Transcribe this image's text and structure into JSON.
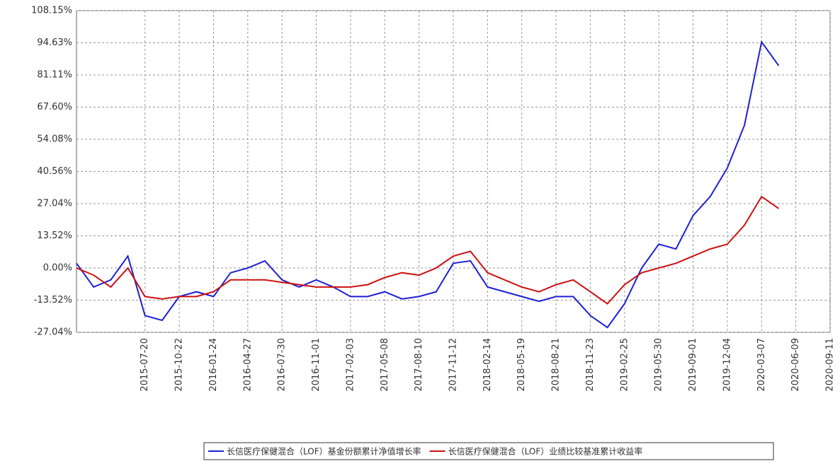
{
  "chart_data": {
    "type": "line",
    "categories": [
      null,
      null,
      null,
      null,
      "2015-07-20",
      null,
      "2015-10-22",
      null,
      "2016-01-24",
      null,
      "2016-04-27",
      null,
      "2016-07-30",
      null,
      "2016-11-01",
      null,
      "2017-02-03",
      null,
      "2017-05-08",
      null,
      "2017-08-10",
      null,
      "2017-11-12",
      null,
      "2018-02-14",
      null,
      "2018-05-19",
      null,
      "2018-08-21",
      null,
      "2018-11-23",
      null,
      "2019-02-25",
      null,
      "2019-05-30",
      null,
      "2019-09-01",
      null,
      "2019-12-04",
      null,
      "2020-03-07",
      null,
      "2020-06-09",
      null,
      "2020-09-11"
    ],
    "series": [
      {
        "name": "长信医疗保健混合（LOF）基金份额累计净值增长率",
        "color": "#1f1fd6",
        "values": [
          2,
          -8,
          -5,
          5,
          -20,
          -22,
          -12,
          -10,
          -12,
          -2,
          0,
          3,
          -5,
          -8,
          -5,
          -8,
          -12,
          -12,
          -10,
          -13,
          -12,
          -10,
          2,
          3,
          -8,
          -10,
          -12,
          -14,
          -12,
          -12,
          -20,
          -25,
          -15,
          0,
          10,
          8,
          22,
          30,
          42,
          60,
          95,
          85,
          null,
          null,
          null
        ]
      },
      {
        "name": "长信医疗保健混合（LOF）业绩比较基准累计收益率",
        "color": "#cc1111",
        "values": [
          0,
          -3,
          -8,
          0,
          -12,
          -13,
          -12,
          -12,
          -10,
          -5,
          -5,
          -5,
          -6,
          -7,
          -8,
          -8,
          -8,
          -7,
          -4,
          -2,
          -3,
          0,
          5,
          7,
          -2,
          -5,
          -8,
          -10,
          -7,
          -5,
          -10,
          -15,
          -7,
          -2,
          0,
          2,
          5,
          8,
          10,
          18,
          30,
          25,
          null,
          null,
          null
        ]
      }
    ],
    "ylim": [
      -27.04,
      108.15
    ],
    "yticks": [
      {
        "value": -27.04,
        "label": "-27.04%"
      },
      {
        "value": -13.52,
        "label": "-13.52%"
      },
      {
        "value": 0,
        "label": "0.00%"
      },
      {
        "value": 13.52,
        "label": "13.52%"
      },
      {
        "value": 27.04,
        "label": "27.04%"
      },
      {
        "value": 40.56,
        "label": "40.56%"
      },
      {
        "value": 54.08,
        "label": "54.08%"
      },
      {
        "value": 67.6,
        "label": "67.60%"
      },
      {
        "value": 81.11,
        "label": "81.11%"
      },
      {
        "value": 94.63,
        "label": "94.63%"
      },
      {
        "value": 108.15,
        "label": "108.15%"
      }
    ],
    "grid": true
  }
}
